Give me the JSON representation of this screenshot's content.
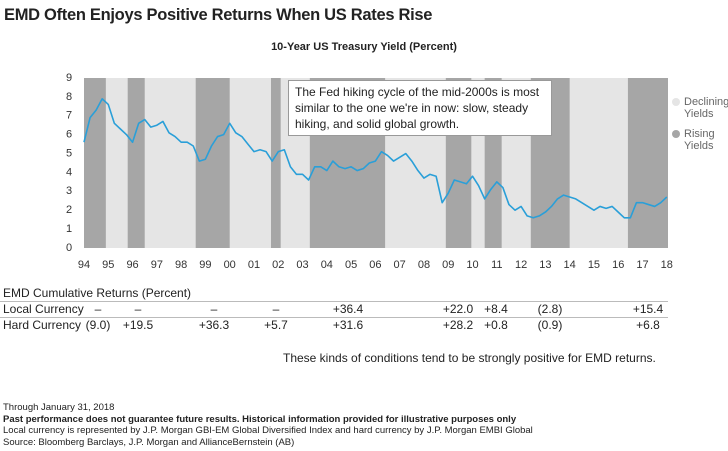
{
  "title": "EMD Often Enjoys Positive Returns When US Rates Rise",
  "chart_data": {
    "type": "line",
    "title": "10-Year US Treasury Yield (Percent)",
    "x": [
      1994.0,
      1994.25,
      1994.5,
      1994.75,
      1995.0,
      1995.25,
      1995.5,
      1995.75,
      1996.0,
      1996.25,
      1996.5,
      1996.75,
      1997.0,
      1997.25,
      1997.5,
      1997.75,
      1998.0,
      1998.25,
      1998.5,
      1998.75,
      1999.0,
      1999.25,
      1999.5,
      1999.75,
      2000.0,
      2000.25,
      2000.5,
      2000.75,
      2001.0,
      2001.25,
      2001.5,
      2001.75,
      2002.0,
      2002.25,
      2002.5,
      2002.75,
      2003.0,
      2003.25,
      2003.5,
      2003.75,
      2004.0,
      2004.25,
      2004.5,
      2004.75,
      2005.0,
      2005.25,
      2005.5,
      2005.75,
      2006.0,
      2006.25,
      2006.5,
      2006.75,
      2007.0,
      2007.25,
      2007.5,
      2007.75,
      2008.0,
      2008.25,
      2008.5,
      2008.75,
      2009.0,
      2009.25,
      2009.5,
      2009.75,
      2010.0,
      2010.25,
      2010.5,
      2010.75,
      2011.0,
      2011.25,
      2011.5,
      2011.75,
      2012.0,
      2012.25,
      2012.5,
      2012.75,
      2013.0,
      2013.25,
      2013.5,
      2013.75,
      2014.0,
      2014.25,
      2014.5,
      2014.75,
      2015.0,
      2015.25,
      2015.5,
      2015.75,
      2016.0,
      2016.25,
      2016.5,
      2016.75,
      2017.0,
      2017.25,
      2017.5,
      2017.75,
      2018.0
    ],
    "values": [
      5.6,
      6.9,
      7.3,
      7.9,
      7.6,
      6.6,
      6.3,
      6.0,
      5.6,
      6.6,
      6.8,
      6.4,
      6.5,
      6.7,
      6.1,
      5.9,
      5.6,
      5.6,
      5.4,
      4.6,
      4.7,
      5.4,
      5.9,
      6.0,
      6.6,
      6.1,
      5.9,
      5.5,
      5.1,
      5.2,
      5.1,
      4.6,
      5.1,
      5.2,
      4.3,
      3.9,
      3.9,
      3.6,
      4.3,
      4.3,
      4.1,
      4.6,
      4.3,
      4.2,
      4.3,
      4.1,
      4.2,
      4.5,
      4.6,
      5.1,
      4.9,
      4.6,
      4.8,
      5.0,
      4.6,
      4.1,
      3.7,
      3.9,
      3.8,
      2.4,
      2.9,
      3.6,
      3.5,
      3.4,
      3.8,
      3.3,
      2.6,
      3.1,
      3.5,
      3.2,
      2.3,
      2.0,
      2.2,
      1.7,
      1.6,
      1.7,
      1.9,
      2.2,
      2.6,
      2.8,
      2.7,
      2.6,
      2.4,
      2.2,
      2.0,
      2.2,
      2.1,
      2.2,
      1.9,
      1.6,
      1.6,
      2.4,
      2.4,
      2.3,
      2.2,
      2.4,
      2.7
    ],
    "line_color": "#2a9fd8",
    "shaded_periods": [
      [
        1994.0,
        1994.9
      ],
      [
        1995.8,
        1996.5
      ],
      [
        1998.6,
        2000.0
      ],
      [
        2001.7,
        2002.1
      ],
      [
        2003.3,
        2006.4
      ],
      [
        2008.9,
        2009.95
      ],
      [
        2010.5,
        2011.2
      ],
      [
        2012.4,
        2014.0
      ],
      [
        2016.4,
        2018.05
      ]
    ],
    "legend": [
      {
        "name": "Declining Yields",
        "color": "#e5e5e5"
      },
      {
        "name": "Rising Yields",
        "color": "#a6a6a6"
      }
    ],
    "annotation": "The Fed hiking cycle of the mid-2000s is most similar to the one we're in now: slow, steady hiking, and solid global growth.",
    "xlim": [
      1994,
      2018.05
    ],
    "ylim": [
      0,
      9
    ],
    "xticks": [
      {
        "value": 1994,
        "label": "94"
      },
      {
        "value": 1995,
        "label": "95"
      },
      {
        "value": 1996,
        "label": "96"
      },
      {
        "value": 1997,
        "label": "97"
      },
      {
        "value": 1998,
        "label": "98"
      },
      {
        "value": 1999,
        "label": "99"
      },
      {
        "value": 2000,
        "label": "00"
      },
      {
        "value": 2001,
        "label": "01"
      },
      {
        "value": 2002,
        "label": "02"
      },
      {
        "value": 2003,
        "label": "03"
      },
      {
        "value": 2004,
        "label": "04"
      },
      {
        "value": 2005,
        "label": "05"
      },
      {
        "value": 2006,
        "label": "06"
      },
      {
        "value": 2007,
        "label": "07"
      },
      {
        "value": 2008,
        "label": "08"
      },
      {
        "value": 2009,
        "label": "09"
      },
      {
        "value": 2010,
        "label": "10"
      },
      {
        "value": 2011,
        "label": "11"
      },
      {
        "value": 2012,
        "label": "12"
      },
      {
        "value": 2013,
        "label": "13"
      },
      {
        "value": 2014,
        "label": "14"
      },
      {
        "value": 2015,
        "label": "15"
      },
      {
        "value": 2016,
        "label": "16"
      },
      {
        "value": 2017,
        "label": "17"
      },
      {
        "value": 2018,
        "label": "18"
      }
    ],
    "yticks": [
      0,
      1,
      2,
      3,
      4,
      5,
      6,
      7,
      8,
      9
    ]
  },
  "returns_table": {
    "title": "EMD Cumulative Returns (Percent)",
    "rows": [
      {
        "label": "Local Currency",
        "cells": [
          "–",
          "–",
          "–",
          "–",
          "+36.4",
          "+22.0",
          "+8.4",
          "(2.8)",
          "+15.4"
        ]
      },
      {
        "label": "Hard Currency",
        "cells": [
          "(9.0)",
          "+19.5",
          "+36.3",
          "+5.7",
          "+31.6",
          "+28.2",
          "+0.8",
          "(0.9)",
          "+6.8"
        ]
      }
    ]
  },
  "note": "These kinds of conditions tend to be strongly positive for EMD returns.",
  "footer": {
    "date": "Through January 31, 2018",
    "disclaimer": "Past performance does not guarantee future results. Historical information provided for illustrative purposes only",
    "definition": "Local currency is represented by J.P. Morgan GBI-EM Global Diversified Index and hard currency by J.P. Morgan EMBI Global",
    "source": "Source: Bloomberg Barclays, J.P. Morgan and AllianceBernstein (AB)"
  }
}
